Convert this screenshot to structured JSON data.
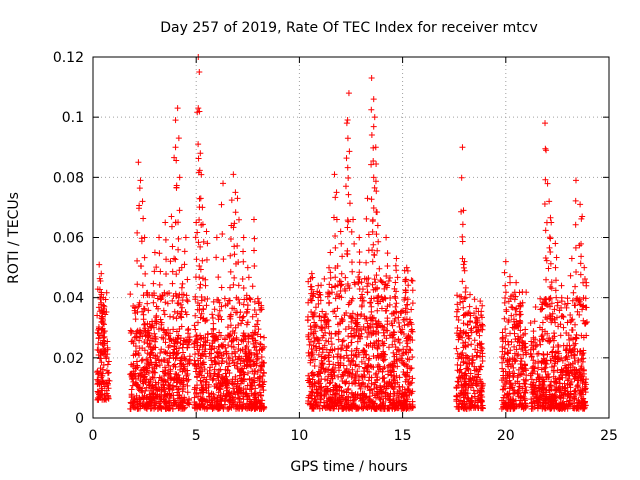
{
  "chart_data": {
    "type": "scatter",
    "title": "Day 257 of 2019, Rate Of TEC Index for receiver mtcv",
    "xlabel": "GPS time / hours",
    "ylabel": "ROTI / TECUs",
    "xlim": [
      0,
      25
    ],
    "ylim": [
      0,
      0.12
    ],
    "xticks": [
      0,
      5,
      10,
      15,
      20,
      25
    ],
    "yticks": [
      0,
      0.02,
      0.04,
      0.06,
      0.08,
      0.1,
      0.12
    ],
    "xtick_labels": [
      "0",
      "5",
      "10",
      "15",
      "20",
      "25"
    ],
    "ytick_labels": [
      "0",
      "0.02",
      "0.04",
      "0.06",
      "0.08",
      "0.1",
      "0.12"
    ],
    "grid": true,
    "marker": "+",
    "color": "#ff0000",
    "series": [
      {
        "name": "ROTI",
        "segments": [
          {
            "x_range": [
              0.2,
              0.8
            ],
            "base": [
              0.006,
              0.03
            ],
            "peaks": [
              [
                0.3,
                0.051
              ],
              [
                0.4,
                0.048
              ],
              [
                0.5,
                0.04
              ],
              [
                0.45,
                0.035
              ]
            ]
          },
          {
            "x_range": [
              1.8,
              4.7
            ],
            "base": [
              0.003,
              0.03
            ],
            "peaks": [
              [
                2.2,
                0.085
              ],
              [
                2.3,
                0.079
              ],
              [
                2.4,
                0.072
              ],
              [
                2.5,
                0.06
              ],
              [
                3.0,
                0.055
              ],
              [
                3.2,
                0.06
              ],
              [
                3.5,
                0.065
              ],
              [
                3.8,
                0.067
              ],
              [
                4.0,
                0.09
              ],
              [
                4.1,
                0.103
              ],
              [
                4.0,
                0.099
              ],
              [
                4.2,
                0.08
              ],
              [
                4.5,
                0.06
              ],
              [
                4.3,
                0.05
              ]
            ]
          },
          {
            "x_range": [
              4.9,
              8.3
            ],
            "base": [
              0.003,
              0.028
            ],
            "peaks": [
              [
                5.1,
                0.12
              ],
              [
                5.15,
                0.115
              ],
              [
                5.1,
                0.103
              ],
              [
                5.2,
                0.088
              ],
              [
                5.3,
                0.07
              ],
              [
                5.0,
                0.065
              ],
              [
                5.5,
                0.062
              ],
              [
                6.0,
                0.06
              ],
              [
                6.3,
                0.078
              ],
              [
                6.7,
                0.064
              ],
              [
                6.8,
                0.081
              ],
              [
                6.9,
                0.075
              ],
              [
                7.0,
                0.073
              ],
              [
                7.3,
                0.06
              ],
              [
                7.8,
                0.066
              ],
              [
                7.5,
                0.05
              ]
            ]
          },
          {
            "x_range": [
              10.4,
              15.5
            ],
            "base": [
              0.003,
              0.035
            ],
            "peaks": [
              [
                10.6,
                0.048
              ],
              [
                11.5,
                0.055
              ],
              [
                11.7,
                0.081
              ],
              [
                11.8,
                0.075
              ],
              [
                12.0,
                0.062
              ],
              [
                12.3,
                0.098
              ],
              [
                12.4,
                0.108
              ],
              [
                12.35,
                0.093
              ],
              [
                12.6,
                0.066
              ],
              [
                12.9,
                0.06
              ],
              [
                13.3,
                0.073
              ],
              [
                13.5,
                0.113
              ],
              [
                13.6,
                0.106
              ],
              [
                13.65,
                0.1
              ],
              [
                13.7,
                0.09
              ],
              [
                13.6,
                0.08
              ],
              [
                13.8,
                0.064
              ],
              [
                14.2,
                0.06
              ],
              [
                14.7,
                0.053
              ],
              [
                15.1,
                0.049
              ],
              [
                15.2,
                0.05
              ]
            ]
          },
          {
            "x_range": [
              17.6,
              18.9
            ],
            "base": [
              0.003,
              0.03
            ],
            "peaks": [
              [
                17.9,
                0.09
              ],
              [
                17.95,
                0.069
              ],
              [
                18.0,
                0.052
              ],
              [
                18.2,
                0.035
              ],
              [
                18.6,
                0.033
              ]
            ]
          },
          {
            "x_range": [
              19.8,
              21.0
            ],
            "base": [
              0.003,
              0.03
            ],
            "peaks": [
              [
                20.0,
                0.052
              ],
              [
                20.2,
                0.047
              ],
              [
                20.5,
                0.045
              ],
              [
                20.7,
                0.038
              ],
              [
                20.4,
                0.032
              ]
            ]
          },
          {
            "x_range": [
              21.2,
              23.9
            ],
            "base": [
              0.003,
              0.028
            ],
            "peaks": [
              [
                21.9,
                0.098
              ],
              [
                21.95,
                0.089
              ],
              [
                22.1,
                0.072
              ],
              [
                22.2,
                0.065
              ],
              [
                22.4,
                0.058
              ],
              [
                22.7,
                0.044
              ],
              [
                23.2,
                0.053
              ],
              [
                23.4,
                0.079
              ],
              [
                23.6,
                0.071
              ],
              [
                23.7,
                0.067
              ],
              [
                23.8,
                0.05
              ],
              [
                23.9,
                0.045
              ]
            ]
          }
        ]
      }
    ]
  }
}
